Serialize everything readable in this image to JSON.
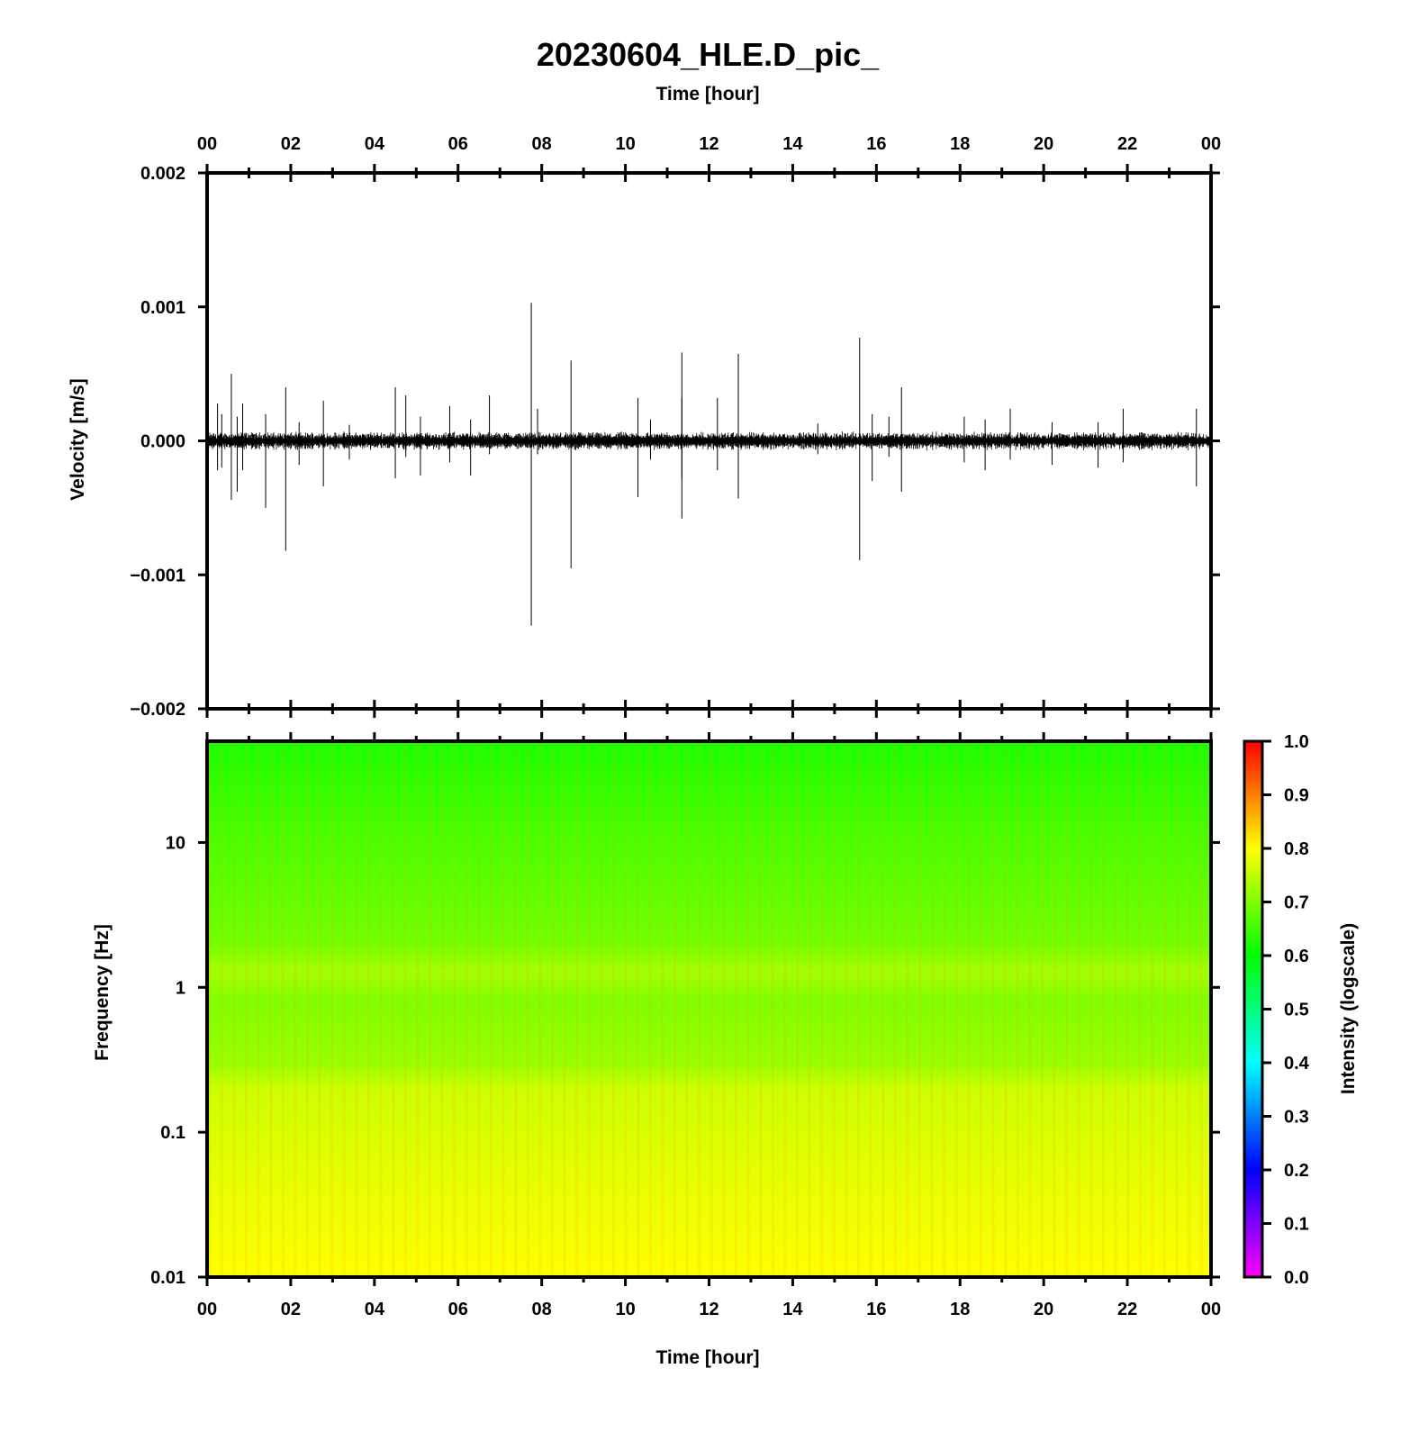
{
  "title": "20230604_HLE.D_pic_",
  "chart_data": [
    {
      "type": "line",
      "name": "waveform",
      "xlabel": "Time [hour]",
      "ylabel": "Velocity [m/s]",
      "xlim": [
        0,
        24
      ],
      "ylim": [
        -0.002,
        0.002
      ],
      "x_ticks": [
        "00",
        "02",
        "04",
        "06",
        "08",
        "10",
        "12",
        "14",
        "16",
        "18",
        "20",
        "22",
        "00"
      ],
      "y_ticks": [
        "0.002",
        "0.001",
        "0.000",
        "−0.001",
        "−0.002"
      ],
      "y_tick_values": [
        0.002,
        0.001,
        0.0,
        -0.001,
        -0.002
      ],
      "noise_amplitude": 4e-05,
      "spikes": [
        {
          "t": 0.25,
          "max": 0.00028,
          "min": -0.00022
        },
        {
          "t": 0.35,
          "max": 0.0002,
          "min": -0.0002
        },
        {
          "t": 0.58,
          "max": 0.0005,
          "min": -0.00044
        },
        {
          "t": 0.72,
          "max": 0.00018,
          "min": -0.00038
        },
        {
          "t": 0.85,
          "max": 0.00028,
          "min": -0.00022
        },
        {
          "t": 1.4,
          "max": 0.0002,
          "min": -0.0005
        },
        {
          "t": 1.88,
          "max": 0.0004,
          "min": -0.00082
        },
        {
          "t": 2.2,
          "max": 0.00014,
          "min": -0.00018
        },
        {
          "t": 2.78,
          "max": 0.0003,
          "min": -0.00034
        },
        {
          "t": 3.4,
          "max": 0.00012,
          "min": -0.00014
        },
        {
          "t": 4.5,
          "max": 0.0004,
          "min": -0.00028
        },
        {
          "t": 4.75,
          "max": 0.00034,
          "min": -0.00012
        },
        {
          "t": 5.1,
          "max": 0.00018,
          "min": -0.00026
        },
        {
          "t": 5.8,
          "max": 0.00026,
          "min": -0.00016
        },
        {
          "t": 6.3,
          "max": 0.00016,
          "min": -0.00026
        },
        {
          "t": 6.75,
          "max": 0.00034,
          "min": -0.0001
        },
        {
          "t": 7.75,
          "max": 0.00103,
          "min": -0.00138
        },
        {
          "t": 7.9,
          "max": 0.00024,
          "min": -0.0001
        },
        {
          "t": 8.7,
          "max": 0.0006,
          "min": -0.00095
        },
        {
          "t": 10.3,
          "max": 0.00032,
          "min": -0.00042
        },
        {
          "t": 10.6,
          "max": 0.00016,
          "min": -0.00014
        },
        {
          "t": 11.35,
          "max": 0.00066,
          "min": -0.00058
        },
        {
          "t": 11.35,
          "max": 0.00032,
          "min": -0.00028
        },
        {
          "t": 12.2,
          "max": 0.00032,
          "min": -0.00022
        },
        {
          "t": 12.7,
          "max": 0.00065,
          "min": -0.00043
        },
        {
          "t": 14.6,
          "max": 0.00013,
          "min": -0.0001
        },
        {
          "t": 15.6,
          "max": 0.00077,
          "min": -0.00089
        },
        {
          "t": 15.9,
          "max": 0.0002,
          "min": -0.0003
        },
        {
          "t": 16.3,
          "max": 0.00018,
          "min": -0.00012
        },
        {
          "t": 16.6,
          "max": 0.0004,
          "min": -0.00038
        },
        {
          "t": 18.1,
          "max": 0.00018,
          "min": -0.00016
        },
        {
          "t": 18.6,
          "max": 0.00016,
          "min": -0.00022
        },
        {
          "t": 19.2,
          "max": 0.00024,
          "min": -0.00014
        },
        {
          "t": 20.2,
          "max": 0.00014,
          "min": -0.00018
        },
        {
          "t": 21.3,
          "max": 0.00014,
          "min": -0.0002
        },
        {
          "t": 21.9,
          "max": 0.00024,
          "min": -0.00016
        },
        {
          "t": 23.65,
          "max": 0.00024,
          "min": -0.00034
        }
      ]
    },
    {
      "type": "heatmap",
      "name": "spectrogram",
      "xlabel": "Time [hour]",
      "ylabel": "Frequency [Hz]",
      "xlim": [
        0,
        24
      ],
      "ylim": [
        0.01,
        50
      ],
      "y_scale": "log",
      "x_ticks": [
        "00",
        "02",
        "04",
        "06",
        "08",
        "10",
        "12",
        "14",
        "16",
        "18",
        "20",
        "22",
        "00"
      ],
      "y_ticks": [
        "10",
        "1",
        "0.1",
        "0.01"
      ],
      "y_tick_values": [
        10,
        1,
        0.1,
        0.01
      ],
      "intensity_profile": [
        {
          "freq": 50,
          "value": 0.62
        },
        {
          "freq": 10,
          "value": 0.66
        },
        {
          "freq": 2,
          "value": 0.69
        },
        {
          "freq": 1.3,
          "value": 0.73
        },
        {
          "freq": 0.8,
          "value": 0.7
        },
        {
          "freq": 0.3,
          "value": 0.72
        },
        {
          "freq": 0.2,
          "value": 0.76
        },
        {
          "freq": 0.05,
          "value": 0.78
        },
        {
          "freq": 0.01,
          "value": 0.8
        }
      ],
      "colorbar": {
        "label": "Intensity (logscale)",
        "ticks": [
          "0.0",
          "0.1",
          "0.2",
          "0.3",
          "0.4",
          "0.5",
          "0.6",
          "0.7",
          "0.8",
          "0.9",
          "1.0"
        ],
        "tick_values": [
          0.0,
          0.1,
          0.2,
          0.3,
          0.4,
          0.5,
          0.6,
          0.7,
          0.8,
          0.9,
          1.0
        ],
        "range": [
          0,
          1
        ],
        "colors": [
          "#ff00ff",
          "#0000ff",
          "#00ffff",
          "#00ff00",
          "#ffff00",
          "#ff0000"
        ]
      }
    }
  ]
}
